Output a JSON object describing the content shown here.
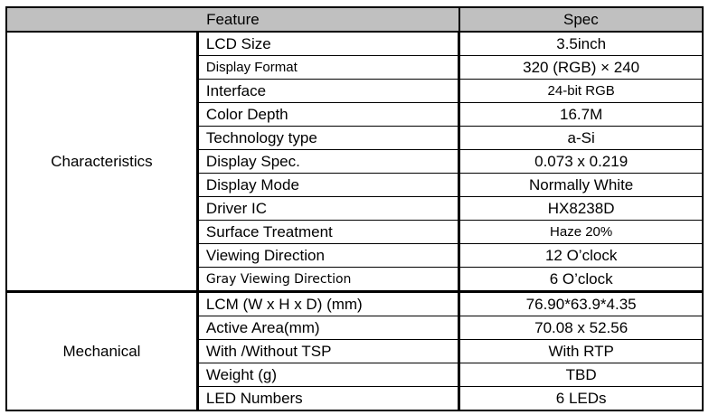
{
  "header": {
    "feature": "Feature",
    "spec": "Spec"
  },
  "groups": [
    {
      "name": "Characteristics",
      "rows": [
        {
          "feature": "LCD Size",
          "spec": "3.5inch"
        },
        {
          "feature": "Display Format",
          "spec": "320 (RGB) × 240"
        },
        {
          "feature": "Interface",
          "spec": "24-bit RGB"
        },
        {
          "feature": "Color Depth",
          "spec": "16.7M"
        },
        {
          "feature": "Technology type",
          "spec": "a-Si"
        },
        {
          "feature": "Display Spec.",
          "spec": "0.073 x 0.219"
        },
        {
          "feature": "Display Mode",
          "spec": "Normally White"
        },
        {
          "feature": "Driver IC",
          "spec": "HX8238D"
        },
        {
          "feature": "Surface Treatment",
          "spec": "Haze 20%"
        },
        {
          "feature": "Viewing Direction",
          "spec": "12 O’clock"
        },
        {
          "feature": "Gray Viewing Direction",
          "spec": "6 O’clock"
        }
      ]
    },
    {
      "name": "Mechanical",
      "rows": [
        {
          "feature": "LCM (W x H x D) (mm)",
          "spec": "76.90*63.9*4.35"
        },
        {
          "feature": "Active Area(mm)",
          "spec": "70.08 x 52.56"
        },
        {
          "feature": "With /Without TSP",
          "spec": "With RTP"
        },
        {
          "feature": "Weight (g)",
          "spec": "TBD"
        },
        {
          "feature": "LED Numbers",
          "spec": "6 LEDs"
        }
      ]
    }
  ]
}
